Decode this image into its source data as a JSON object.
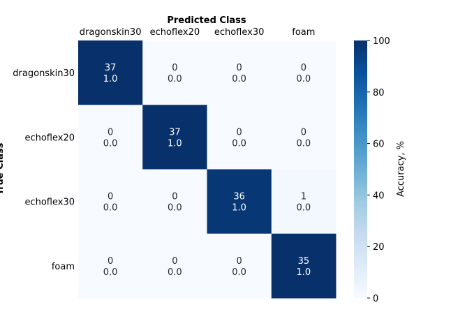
{
  "chart_data": {
    "type": "heatmap",
    "title": "Predicted Class",
    "xlabel": "",
    "ylabel": "True Class",
    "x_categories": [
      "dragonskin30",
      "echoflex20",
      "echoflex30",
      "foam"
    ],
    "y_categories": [
      "dragonskin30",
      "echoflex20",
      "echoflex30",
      "foam"
    ],
    "counts": [
      [
        37,
        0,
        0,
        0
      ],
      [
        0,
        37,
        0,
        0
      ],
      [
        0,
        0,
        36,
        1
      ],
      [
        0,
        0,
        0,
        35
      ]
    ],
    "normalized": [
      [
        "1.0",
        "0.0",
        "0.0",
        "0.0"
      ],
      [
        "0.0",
        "1.0",
        "0.0",
        "0.0"
      ],
      [
        "0.0",
        "0.0",
        "1.0",
        "0.0"
      ],
      [
        "0.0",
        "0.0",
        "0.0",
        "1.0"
      ]
    ],
    "accuracy_percent": [
      [
        100,
        0,
        0,
        0
      ],
      [
        0,
        100,
        0,
        0
      ],
      [
        0,
        0,
        97.3,
        2.7
      ],
      [
        0,
        0,
        0,
        100
      ]
    ],
    "colorbar": {
      "label": "Accuracy, %",
      "range": [
        0,
        100
      ],
      "ticks": [
        0,
        20,
        40,
        60,
        80,
        100
      ]
    },
    "colormap": "Blues",
    "colors": {
      "low": "#f7fbff",
      "high": "#08306b",
      "text_light": "#ffffff",
      "text_dark": "#262626"
    },
    "grid": false,
    "x_tick_position": "top"
  }
}
